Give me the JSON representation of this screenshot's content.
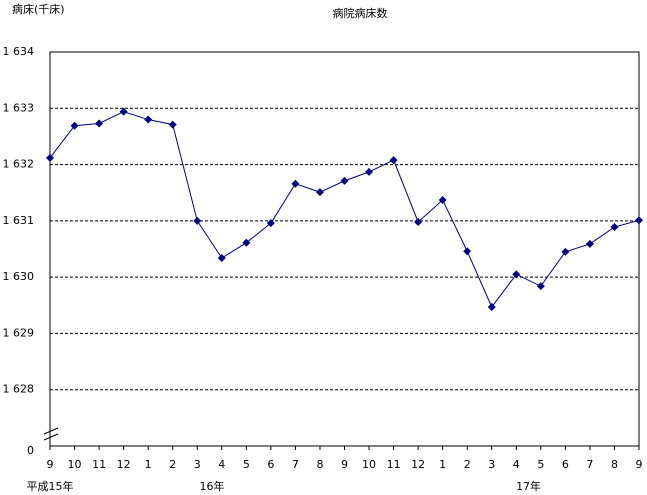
{
  "chart_data": {
    "type": "line",
    "title": "病院病床数",
    "y_axis_label": "病床(千床)",
    "categories": [
      "9",
      "10",
      "11",
      "12",
      "1",
      "2",
      "3",
      "4",
      "5",
      "6",
      "7",
      "8",
      "9",
      "10",
      "11",
      "12",
      "1",
      "2",
      "3",
      "4",
      "5",
      "6",
      "7",
      "8",
      "9"
    ],
    "year_labels": [
      "平成15年",
      "16年",
      "17年"
    ],
    "series": [
      {
        "name": "病院病床数",
        "color": "#000080",
        "values": [
          1632.12,
          1632.69,
          1632.73,
          1632.94,
          1632.8,
          1632.71,
          1631.0,
          1630.34,
          1630.61,
          1630.96,
          1631.66,
          1631.51,
          1631.71,
          1631.87,
          1632.08,
          1630.98,
          1631.37,
          1630.46,
          1629.47,
          1630.05,
          1629.84,
          1630.45,
          1630.59,
          1630.89,
          1631.01
        ]
      }
    ],
    "ylim": [
      1627,
      1634
    ],
    "yticks": [
      {
        "value": 1628,
        "label": "1 628"
      },
      {
        "value": 1629,
        "label": "1 629"
      },
      {
        "value": 1630,
        "label": "1 630"
      },
      {
        "value": 1631,
        "label": "1 631"
      },
      {
        "value": 1632,
        "label": "1 632"
      },
      {
        "value": 1633,
        "label": "1 633"
      },
      {
        "value": 1634,
        "label": "1 634"
      }
    ],
    "y_origin_label": "0",
    "grid": true
  }
}
